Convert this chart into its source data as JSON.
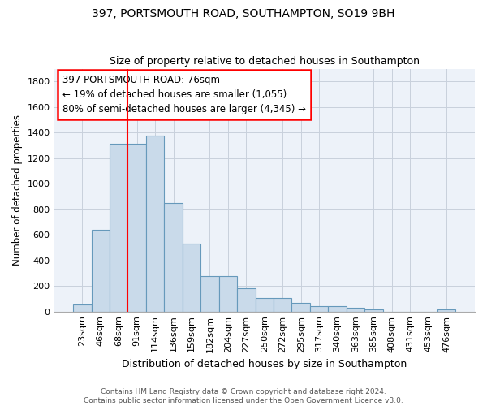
{
  "title1": "397, PORTSMOUTH ROAD, SOUTHAMPTON, SO19 9BH",
  "title2": "Size of property relative to detached houses in Southampton",
  "xlabel": "Distribution of detached houses by size in Southampton",
  "ylabel": "Number of detached properties",
  "bar_labels": [
    "23sqm",
    "46sqm",
    "68sqm",
    "91sqm",
    "114sqm",
    "136sqm",
    "159sqm",
    "182sqm",
    "204sqm",
    "227sqm",
    "250sqm",
    "272sqm",
    "295sqm",
    "317sqm",
    "340sqm",
    "363sqm",
    "385sqm",
    "408sqm",
    "431sqm",
    "453sqm",
    "476sqm"
  ],
  "bar_values": [
    55,
    640,
    1310,
    1310,
    1375,
    848,
    530,
    278,
    278,
    185,
    105,
    105,
    68,
    40,
    40,
    28,
    15,
    0,
    0,
    0,
    15
  ],
  "bar_color": "#c9daea",
  "bar_edge_color": "#6699bb",
  "vline_x": 2.5,
  "vline_color": "red",
  "annotation_line1": "397 PORTSMOUTH ROAD: 76sqm",
  "annotation_line2": "← 19% of detached houses are smaller (1,055)",
  "annotation_line3": "80% of semi-detached houses are larger (4,345) →",
  "ylim": [
    0,
    1900
  ],
  "yticks": [
    0,
    200,
    400,
    600,
    800,
    1000,
    1200,
    1400,
    1600,
    1800
  ],
  "footer1": "Contains HM Land Registry data © Crown copyright and database right 2024.",
  "footer2": "Contains public sector information licensed under the Open Government Licence v3.0.",
  "bg_color": "#edf2f9",
  "grid_color": "#c8d0dc",
  "title1_fontsize": 10,
  "title2_fontsize": 9,
  "xlabel_fontsize": 9,
  "ylabel_fontsize": 8.5,
  "tick_fontsize": 8,
  "footer_fontsize": 6.5,
  "annotation_fontsize": 8.5
}
